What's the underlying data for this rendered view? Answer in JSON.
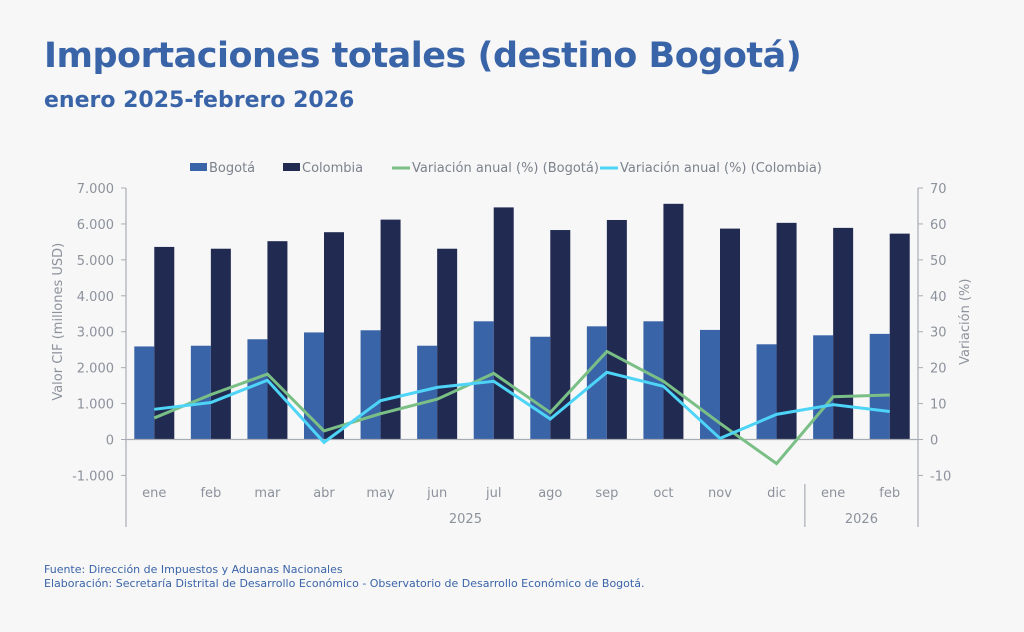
{
  "header": {
    "title": "Importaciones totales (destino Bogotá)",
    "subtitle": "enero 2025-febrero 2026"
  },
  "footer": {
    "source": "Fuente: Dirección de Impuestos y Aduanas Nacionales",
    "elaboration": "Elaboración: Secretaría Distrital de Desarrollo Económico - Observatorio de Desarrollo Económico de Bogotá."
  },
  "colors": {
    "bogota_bar": "#3a64a8",
    "colombia_bar": "#212b52",
    "bogota_line": "#7abf86",
    "colombia_line": "#4dd4f7",
    "title": "#3a64a8",
    "axis": "#a8adb5"
  },
  "chart_data": {
    "type": "bar",
    "title": "Importaciones totales (destino Bogotá)",
    "subtitle": "enero 2025-febrero 2026",
    "categories": [
      "ene",
      "feb",
      "mar",
      "abr",
      "may",
      "jun",
      "jul",
      "ago",
      "sep",
      "oct",
      "nov",
      "dic",
      "ene",
      "feb"
    ],
    "category_groups": [
      {
        "label": "2025",
        "count": 12
      },
      {
        "label": "2026",
        "count": 2
      }
    ],
    "ylabel": "Valor CIF (millones USD)",
    "ylim": [
      -1000,
      7000
    ],
    "yticks": [
      "-1.000",
      "0",
      "1.000",
      "2.000",
      "3.000",
      "4.000",
      "5.000",
      "6.000",
      "7.000"
    ],
    "y2label": "Variación (%)",
    "y2lim": [
      -10,
      70
    ],
    "y2ticks": [
      "-10",
      "0",
      "10",
      "20",
      "30",
      "40",
      "50",
      "60",
      "70"
    ],
    "grid": false,
    "legend_position": "top",
    "series": [
      {
        "name": "Bogotá",
        "type": "bar",
        "axis": "left",
        "values": [
          2590,
          2610,
          2790,
          2980,
          3040,
          2610,
          3290,
          2860,
          3150,
          3290,
          3050,
          2650,
          2900,
          2940
        ]
      },
      {
        "name": "Colombia",
        "type": "bar",
        "axis": "left",
        "values": [
          5360,
          5310,
          5520,
          5770,
          6120,
          5310,
          6460,
          5830,
          6110,
          6560,
          5870,
          6030,
          5890,
          5730
        ]
      },
      {
        "name": "Variación anual (%) (Bogotá)",
        "type": "line",
        "axis": "right",
        "values": [
          6.0,
          12.5,
          18.2,
          2.4,
          7.2,
          11.2,
          18.4,
          7.5,
          24.5,
          16.2,
          4.5,
          -6.7,
          11.9,
          12.4
        ]
      },
      {
        "name": "Variación anual (%) (Colombia)",
        "type": "line",
        "axis": "right",
        "values": [
          8.4,
          10.3,
          16.5,
          -0.8,
          10.8,
          14.5,
          16.2,
          5.7,
          18.7,
          14.8,
          0.3,
          7.0,
          9.7,
          7.8
        ]
      }
    ]
  }
}
